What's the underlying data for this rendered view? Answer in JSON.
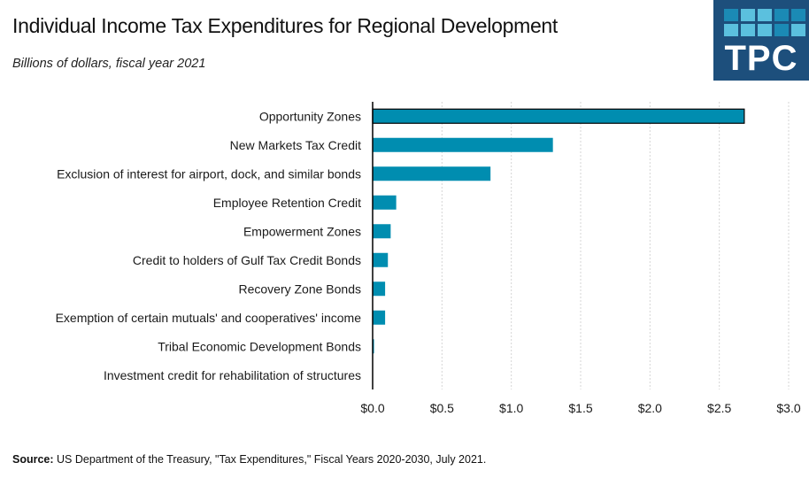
{
  "header": {
    "title": "Individual Income Tax Expenditures for Regional Development",
    "subtitle": "Billions of dollars, fiscal year 2021"
  },
  "logo": {
    "text": "TPC",
    "background": "#1d4f7c",
    "tile_colors": [
      "#1b8ab5",
      "#5bc0de",
      "#5bc0de",
      "#1b8ab5",
      "#1b8ab5",
      "#5bc0de",
      "#5bc0de",
      "#5bc0de",
      "#1b8ab5",
      "#5bc0de"
    ]
  },
  "footer": {
    "source_label": "Source:",
    "source_text": "US Department of the Treasury, \"Tax Expenditures,\"  Fiscal Years 2020-2030, July 2021."
  },
  "chart_data": {
    "type": "bar",
    "orientation": "horizontal",
    "title": "Individual Income Tax Expenditures for Regional Development",
    "subtitle": "Billions of dollars, fiscal year 2021",
    "xlabel": "",
    "ylabel": "",
    "categories": [
      "Opportunity Zones",
      "New Markets Tax Credit",
      "Exclusion of interest for airport, dock, and similar bonds",
      "Employee Retention Credit",
      "Empowerment Zones",
      "Credit to holders of Gulf Tax Credit Bonds",
      "Recovery Zone Bonds",
      "Exemption of certain mutuals' and cooperatives' income",
      "Tribal Economic Development Bonds",
      "Investment credit for rehabilitation of structures"
    ],
    "values": [
      2.68,
      1.3,
      0.85,
      0.17,
      0.13,
      0.11,
      0.09,
      0.09,
      0.01,
      0.0
    ],
    "highlighted_index": 0,
    "xlim": [
      0,
      3.0
    ],
    "xticks": [
      0,
      0.5,
      1.0,
      1.5,
      2.0,
      2.5,
      3.0
    ],
    "xtick_labels": [
      "$0.0",
      "$0.5",
      "$1.0",
      "$1.5",
      "$2.0",
      "$2.5",
      "$3.0"
    ],
    "grid": "vertical-dotted",
    "legend": "none",
    "bar_color": "#008db0"
  }
}
